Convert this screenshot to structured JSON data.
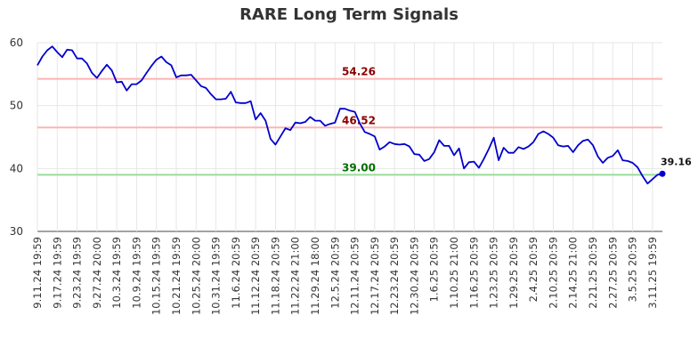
{
  "chart_data": {
    "type": "line",
    "title": "RARE Long Term Signals",
    "xlabel": "",
    "ylabel": "",
    "ylim": [
      30,
      60
    ],
    "yticks": [
      30,
      40,
      50,
      60
    ],
    "grid": true,
    "colors": {
      "line": "#0000cc",
      "upper_level": "#ffb3b3",
      "lower_level": "#99dd99",
      "upper_label": "#8b0000",
      "lower_label": "#007000",
      "grid": "#e6e6e6",
      "text": "#333333"
    },
    "tick_labels": [
      "9.11.24 19:59",
      "9.17.24 19:59",
      "9.23.24 19:59",
      "9.27.24 20:00",
      "10.3.24 19:59",
      "10.9.24 19:59",
      "10.15.24 19:59",
      "10.21.24 19:59",
      "10.25.24 20:00",
      "10.31.24 19:59",
      "11.6.24 20:59",
      "11.12.24 20:59",
      "11.18.24 20:59",
      "11.22.24 21:00",
      "11.29.24 18:00",
      "12.5.24 20:59",
      "12.11.24 20:59",
      "12.17.24 20:59",
      "12.23.24 20:59",
      "12.30.24 20:59",
      "1.6.25 20:59",
      "1.10.25 21:00",
      "1.16.25 20:59",
      "1.23.25 20:59",
      "1.29.25 20:59",
      "2.4.25 20:59",
      "2.10.25 20:59",
      "2.14.25 21:00",
      "2.21.25 20:59",
      "2.27.25 20:59",
      "3.5.25 20:59",
      "3.11.25 19:59"
    ],
    "tick_index_step": 4,
    "series": [
      {
        "values": [
          56.4,
          57.8,
          58.8,
          59.4,
          58.5,
          57.7,
          58.9,
          58.8,
          57.5,
          57.5,
          56.7,
          55.2,
          54.4,
          55.5,
          56.5,
          55.6,
          53.7,
          53.8,
          52.4,
          53.4,
          53.4,
          54.0,
          55.2,
          56.3,
          57.3,
          57.8,
          56.9,
          56.4,
          54.5,
          54.8,
          54.8,
          54.9,
          54.0,
          53.1,
          52.8,
          51.8,
          51.0,
          51.0,
          51.1,
          52.2,
          50.5,
          50.4,
          50.4,
          50.7,
          47.8,
          48.8,
          47.6,
          44.7,
          43.8,
          45.1,
          46.4,
          46.1,
          47.3,
          47.2,
          47.4,
          48.2,
          47.6,
          47.6,
          46.8,
          47.1,
          47.3,
          49.5,
          49.5,
          49.2,
          49.0,
          47.2,
          45.8,
          45.5,
          45.1,
          43.0,
          43.5,
          44.2,
          43.9,
          43.8,
          43.9,
          43.5,
          42.3,
          42.2,
          41.2,
          41.5,
          42.6,
          44.5,
          43.6,
          43.6,
          42.1,
          43.2,
          40.0,
          41.0,
          41.1,
          40.1,
          41.5,
          43.1,
          44.9,
          41.3,
          43.3,
          42.5,
          42.5,
          43.4,
          43.1,
          43.5,
          44.2,
          45.5,
          45.9,
          45.5,
          44.9,
          43.7,
          43.5,
          43.6,
          42.6,
          43.7,
          44.4,
          44.6,
          43.7,
          41.9,
          40.9,
          41.7,
          42.0,
          42.9,
          41.3,
          41.2,
          40.9,
          40.2,
          38.8,
          37.6,
          38.3,
          39.0,
          39.16
        ]
      }
    ],
    "reference_lines": [
      {
        "value": 54.26,
        "label": "54.26",
        "kind": "upper"
      },
      {
        "value": 46.52,
        "label": "46.52",
        "kind": "upper"
      },
      {
        "value": 39.0,
        "label": "39.00",
        "kind": "lower"
      }
    ],
    "last_value_label": "39.16"
  }
}
